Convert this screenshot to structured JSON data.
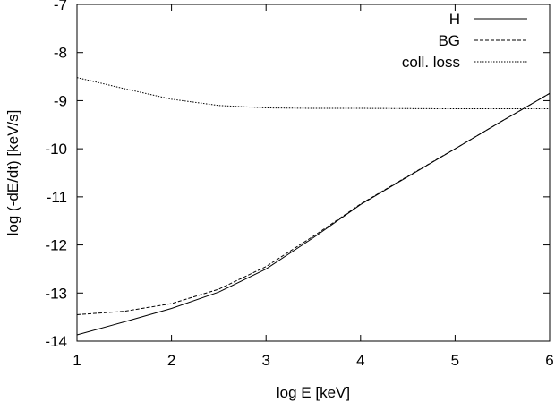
{
  "chart_data": {
    "type": "line",
    "xlabel": "log E [keV]",
    "ylabel": "log (-dE/dt) [keV/s]",
    "xlim": [
      1,
      6
    ],
    "ylim": [
      -14,
      -7
    ],
    "xticks": [
      "1",
      "2",
      "3",
      "4",
      "5",
      "6"
    ],
    "yticks": [
      "-14",
      "-13",
      "-12",
      "-11",
      "-10",
      "-9",
      "-8",
      "-7"
    ],
    "grid": false,
    "legend_position": "top-right",
    "series": [
      {
        "name": "H",
        "dash": "solid",
        "x": [
          1.0,
          1.5,
          2.0,
          2.5,
          3.0,
          3.5,
          4.0,
          4.5,
          5.0,
          5.5,
          6.0
        ],
        "y": [
          -13.87,
          -13.6,
          -13.32,
          -12.98,
          -12.5,
          -11.85,
          -11.16,
          -10.58,
          -10.0,
          -9.42,
          -8.85
        ]
      },
      {
        "name": "BG",
        "dash": "dashed",
        "x": [
          1.0,
          1.5,
          2.0,
          2.5,
          3.0,
          3.5,
          4.0,
          4.5,
          5.0,
          5.5,
          6.0
        ],
        "y": [
          -13.45,
          -13.38,
          -13.22,
          -12.92,
          -12.45,
          -11.82,
          -11.15,
          -10.57,
          -10.0,
          -9.42,
          -8.85
        ]
      },
      {
        "name": "coll. loss",
        "dash": "dotted",
        "x": [
          1.0,
          1.5,
          2.0,
          2.5,
          3.0,
          3.5,
          4.0,
          5.0,
          6.0
        ],
        "y": [
          -8.52,
          -8.75,
          -8.97,
          -9.1,
          -9.15,
          -9.16,
          -9.16,
          -9.17,
          -9.17
        ]
      }
    ]
  }
}
